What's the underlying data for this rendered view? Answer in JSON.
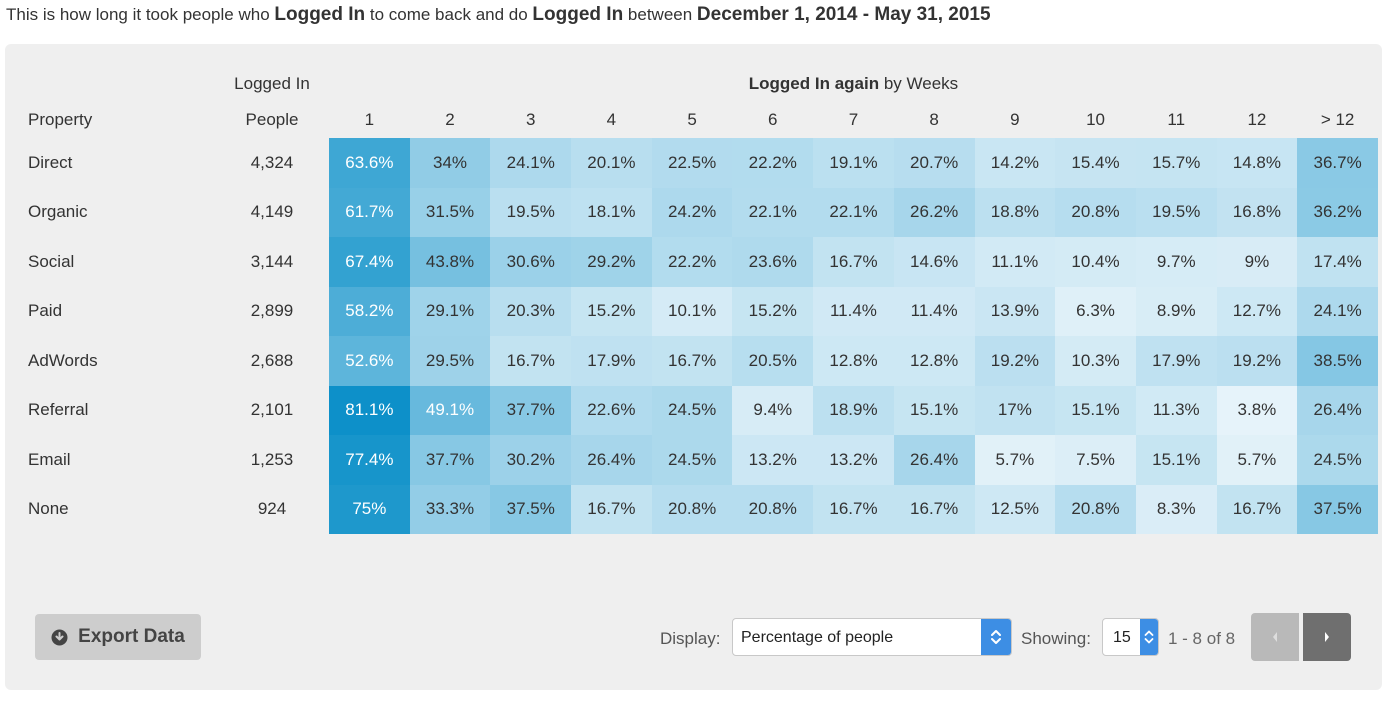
{
  "headline": {
    "pre": "This is how long it took people who ",
    "event1": "Logged In",
    "mid": " to come back and do ",
    "event2": "Logged In",
    "mid2": " between ",
    "range": "December 1, 2014 - May 31, 2015"
  },
  "table": {
    "group_left": "Logged In",
    "group_right_bold": "Logged In again",
    "group_right_rest": " by Weeks",
    "col_property": "Property",
    "col_people": "People",
    "weeks": [
      "1",
      "2",
      "3",
      "4",
      "5",
      "6",
      "7",
      "8",
      "9",
      "10",
      "11",
      "12",
      "> 12"
    ],
    "rows": [
      {
        "property": "Direct",
        "people": "4,324",
        "values": [
          63.6,
          34,
          24.1,
          20.1,
          22.5,
          22.2,
          19.1,
          20.7,
          14.2,
          15.4,
          15.7,
          14.8,
          36.7
        ]
      },
      {
        "property": "Organic",
        "people": "4,149",
        "values": [
          61.7,
          31.5,
          19.5,
          18.1,
          24.2,
          22.1,
          22.1,
          26.2,
          18.8,
          20.8,
          19.5,
          16.8,
          36.2
        ]
      },
      {
        "property": "Social",
        "people": "3,144",
        "values": [
          67.4,
          43.8,
          30.6,
          29.2,
          22.2,
          23.6,
          16.7,
          14.6,
          11.1,
          10.4,
          9.7,
          9,
          17.4
        ]
      },
      {
        "property": "Paid",
        "people": "2,899",
        "values": [
          58.2,
          29.1,
          20.3,
          15.2,
          10.1,
          15.2,
          11.4,
          11.4,
          13.9,
          6.3,
          8.9,
          12.7,
          24.1
        ]
      },
      {
        "property": "AdWords",
        "people": "2,688",
        "values": [
          52.6,
          29.5,
          16.7,
          17.9,
          16.7,
          20.5,
          12.8,
          12.8,
          19.2,
          10.3,
          17.9,
          19.2,
          38.5
        ]
      },
      {
        "property": "Referral",
        "people": "2,101",
        "values": [
          81.1,
          49.1,
          37.7,
          22.6,
          24.5,
          9.4,
          18.9,
          15.1,
          17,
          15.1,
          11.3,
          3.8,
          26.4
        ]
      },
      {
        "property": "Email",
        "people": "1,253",
        "values": [
          77.4,
          37.7,
          30.2,
          26.4,
          24.5,
          13.2,
          13.2,
          26.4,
          5.7,
          7.5,
          15.1,
          5.7,
          24.5
        ]
      },
      {
        "property": "None",
        "people": "924",
        "values": [
          75,
          33.3,
          37.5,
          16.7,
          20.8,
          20.8,
          16.7,
          16.7,
          12.5,
          20.8,
          8.3,
          16.7,
          37.5
        ]
      }
    ]
  },
  "toolbar": {
    "export_label": "Export Data",
    "display_label": "Display:",
    "display_value": "Percentage of people",
    "showing_label": "Showing:",
    "showing_value": "15",
    "range_text": "1 - 8 of 8"
  },
  "colors": {
    "panel_bg": "#efefef",
    "heat_low": "#f1f8fc",
    "heat_high": "#0a8fc8",
    "accent": "#3d8ee4"
  }
}
